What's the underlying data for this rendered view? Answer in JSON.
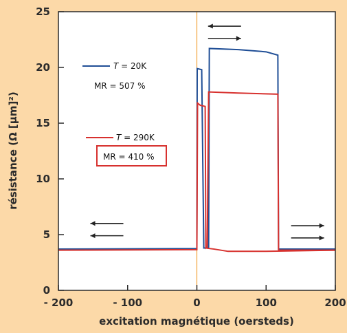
{
  "chart_data": {
    "type": "line",
    "xlabel": "excitation magnétique (oersteds)",
    "ylabel": "résistance (Ω [µm]²)",
    "xlim": [
      -200,
      200
    ],
    "ylim": [
      0,
      25
    ],
    "x_ticks": [
      -200,
      -100,
      0,
      100,
      200
    ],
    "x_tick_labels": [
      "- 200",
      "- 100",
      "0",
      "100",
      "200"
    ],
    "y_ticks": [
      0,
      5,
      10,
      15,
      20,
      25
    ],
    "y_tick_labels": [
      "0",
      "5",
      "10",
      "15",
      "20",
      "25"
    ],
    "grid": false,
    "reference_line_x": 0,
    "series": [
      {
        "color": "#1f4e96",
        "points": [
          [
            -200,
            3.7
          ],
          [
            0,
            3.75
          ],
          [
            0.5,
            19.9
          ],
          [
            7,
            19.8
          ],
          [
            10,
            3.8
          ],
          [
            17,
            3.8
          ],
          [
            18,
            21.7
          ],
          [
            60,
            21.6
          ],
          [
            100,
            21.4
          ],
          [
            117,
            21.1
          ],
          [
            118,
            3.7
          ],
          [
            200,
            3.7
          ]
        ]
      },
      {
        "color": "#d7312e",
        "points": [
          [
            -200,
            3.6
          ],
          [
            0,
            3.65
          ],
          [
            1,
            16.8
          ],
          [
            5,
            16.6
          ],
          [
            12,
            16.5
          ],
          [
            13,
            3.8
          ],
          [
            15,
            3.9
          ],
          [
            17,
            17.8
          ],
          [
            60,
            17.7
          ],
          [
            117,
            17.6
          ],
          [
            118,
            3.6
          ],
          [
            200,
            3.6
          ]
        ]
      },
      {
        "color": "#d7312e",
        "points": [
          [
            12,
            3.8
          ],
          [
            25,
            3.7
          ],
          [
            45,
            3.5
          ],
          [
            100,
            3.5
          ],
          [
            200,
            3.6
          ]
        ]
      }
    ],
    "legend": [
      {
        "var": "T",
        "text": " = 20K",
        "color": "#1f4e96"
      },
      {
        "var": "T",
        "text": " = 290K",
        "color": "#d7312e"
      }
    ],
    "annotations": [
      {
        "text": "MR = 507 %",
        "boxed": false
      },
      {
        "text": "MR = 410 %",
        "boxed": true,
        "box_color": "#d7312e"
      }
    ],
    "arrows": [
      {
        "x": -130,
        "y": 6.0,
        "direction": "left"
      },
      {
        "x": -130,
        "y": 4.9,
        "direction": "left"
      },
      {
        "x": 40,
        "y": 23.7,
        "direction": "left"
      },
      {
        "x": 40,
        "y": 22.6,
        "direction": "right"
      },
      {
        "x": 160,
        "y": 5.8,
        "direction": "right"
      },
      {
        "x": 160,
        "y": 4.7,
        "direction": "right"
      }
    ]
  }
}
